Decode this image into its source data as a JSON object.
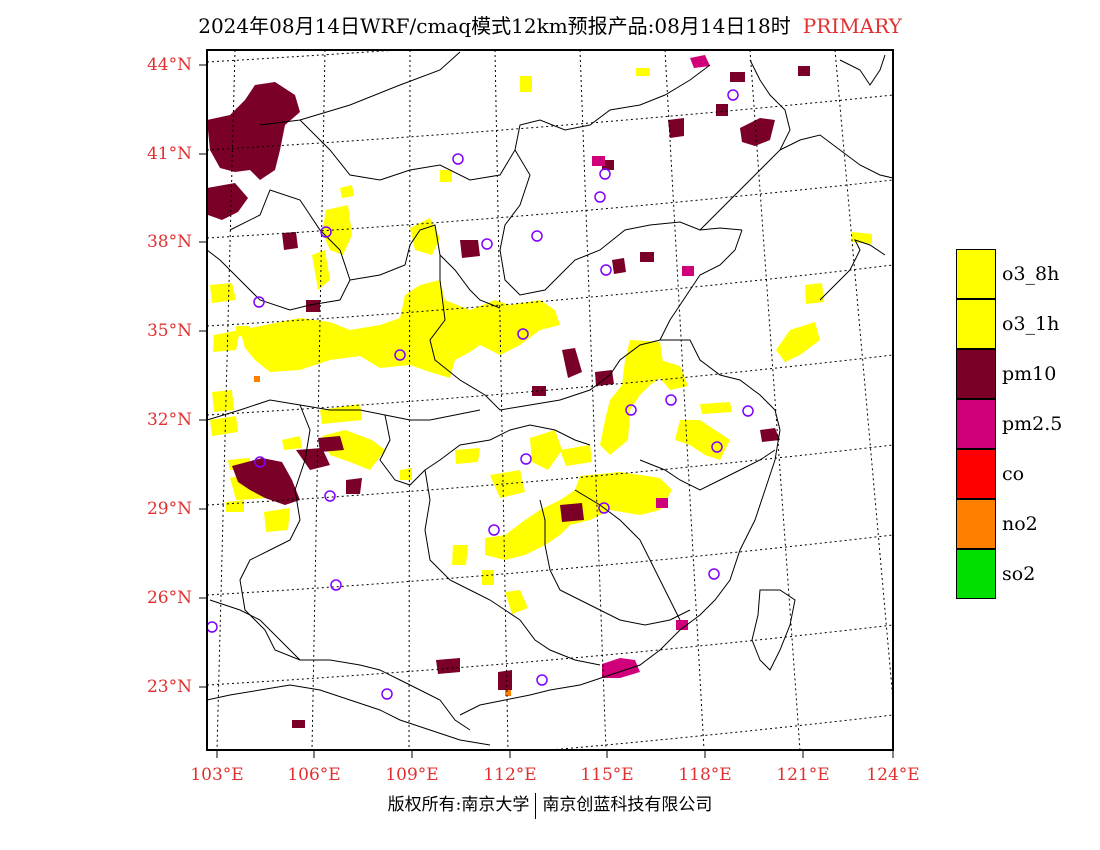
{
  "title": {
    "main": "2024年08月14日WRF/cmaq模式12km预报产品:08月14日18时",
    "tag": "PRIMARY"
  },
  "map": {
    "lat_labels": [
      "44°N",
      "41°N",
      "38°N",
      "35°N",
      "32°N",
      "29°N",
      "26°N",
      "23°N"
    ],
    "lon_labels": [
      "103°E",
      "106°E",
      "109°E",
      "112°E",
      "115°E",
      "118°E",
      "121°E",
      "124°E"
    ],
    "lat_values": [
      44,
      41,
      38,
      35,
      32,
      29,
      26,
      23
    ],
    "lon_values": [
      103,
      106,
      109,
      112,
      115,
      118,
      121,
      124
    ]
  },
  "legend": {
    "items": [
      {
        "label": "o3_8h",
        "color": "#ffff00"
      },
      {
        "label": "o3_1h",
        "color": "#ffff00"
      },
      {
        "label": "pm10",
        "color": "#7a0028"
      },
      {
        "label": "pm2.5",
        "color": "#d0007a"
      },
      {
        "label": "co",
        "color": "#ff0000"
      },
      {
        "label": "no2",
        "color": "#ff8000"
      },
      {
        "label": "so2",
        "color": "#00e000"
      }
    ]
  },
  "footer": {
    "left": "版权所有:南京大学",
    "right": "南京创蓝科技有限公司"
  },
  "colors": {
    "o3": "#ffff00",
    "pm10": "#7a0028",
    "pm25": "#d0007a",
    "station_marker": "#8000ff",
    "tick_text": "#e03030"
  }
}
